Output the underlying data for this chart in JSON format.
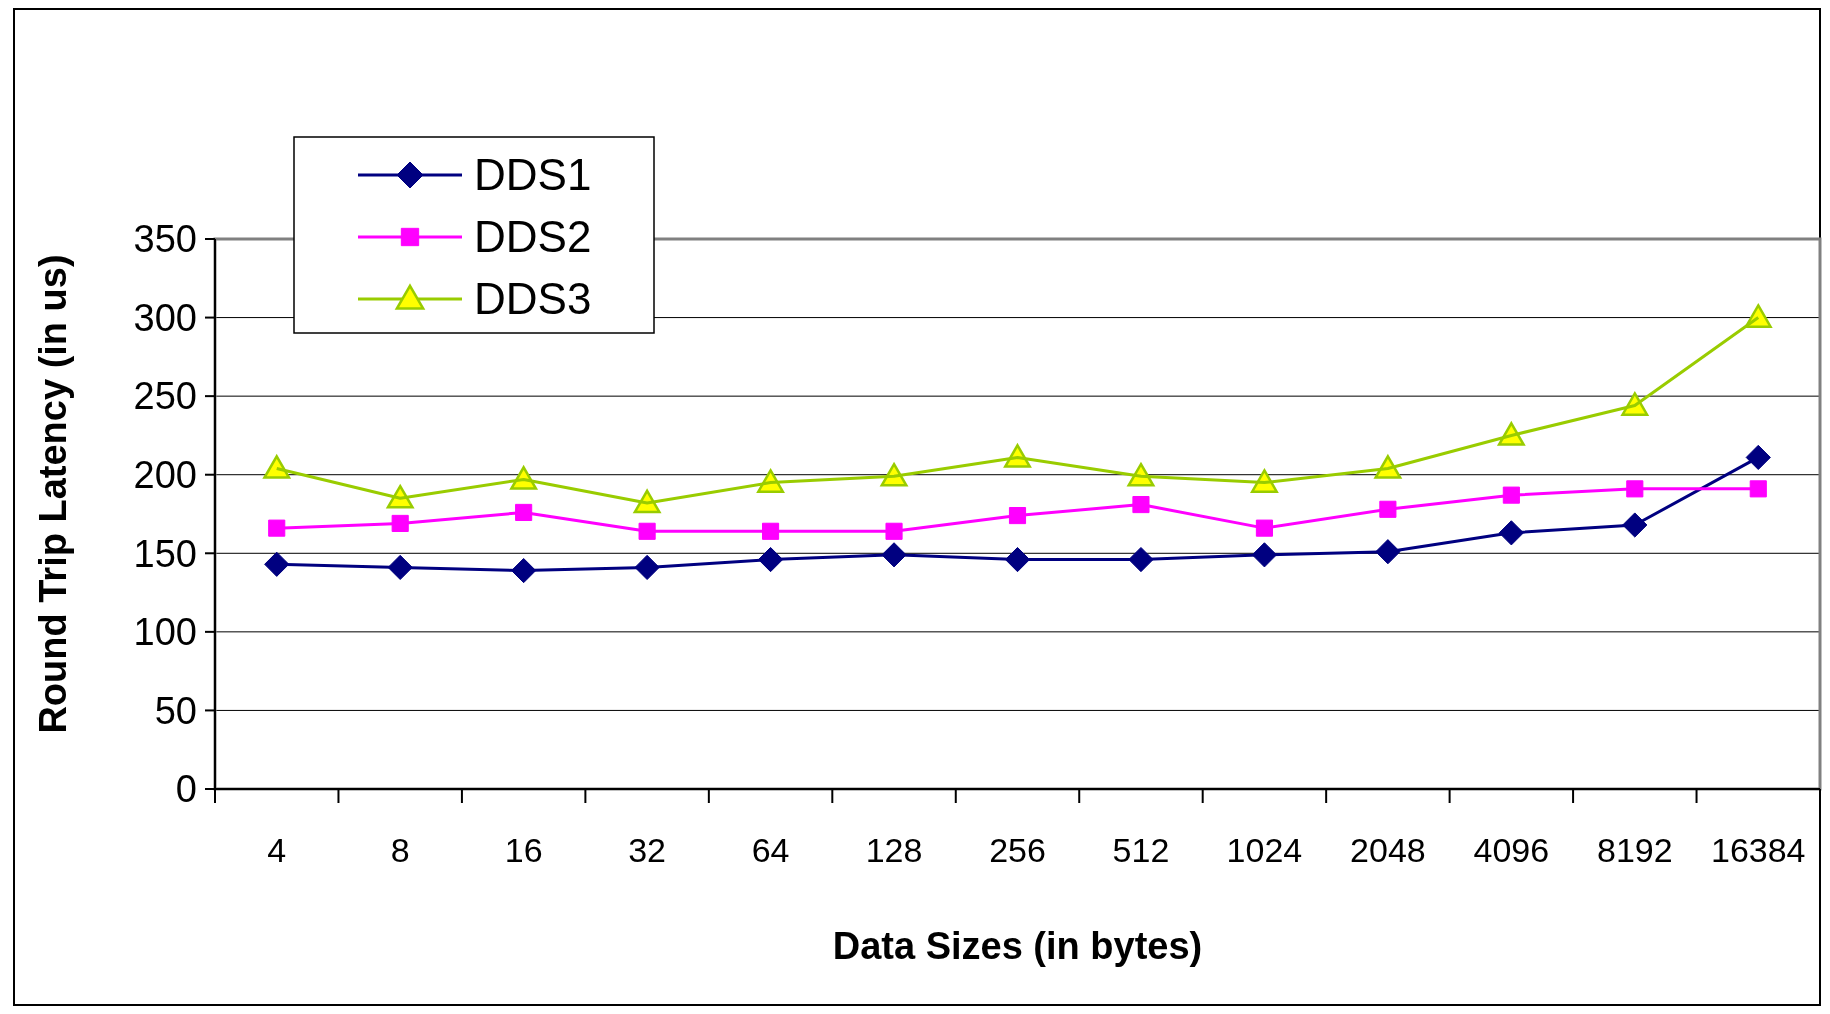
{
  "chart_data": {
    "type": "line",
    "xlabel": "Data Sizes (in bytes)",
    "ylabel": "Round Trip Latency (in us)",
    "categories": [
      "4",
      "8",
      "16",
      "32",
      "64",
      "128",
      "256",
      "512",
      "1024",
      "2048",
      "4096",
      "8192",
      "16384"
    ],
    "series": [
      {
        "name": "DDS1",
        "color": "#000080",
        "marker": "diamond",
        "values": [
          143,
          141,
          139,
          141,
          146,
          149,
          146,
          146,
          149,
          151,
          163,
          168,
          211
        ]
      },
      {
        "name": "DDS2",
        "color": "#ff00ff",
        "marker": "square",
        "values": [
          166,
          169,
          176,
          164,
          164,
          164,
          174,
          181,
          166,
          178,
          187,
          191,
          191
        ]
      },
      {
        "name": "DDS3",
        "color": "#99cc00",
        "marker": "triangle",
        "values": [
          204,
          185,
          197,
          182,
          195,
          199,
          211,
          199,
          195,
          204,
          225,
          244,
          300
        ]
      }
    ],
    "ylim": [
      0,
      350
    ],
    "yticks": [
      0,
      50,
      100,
      150,
      200,
      250,
      300,
      350
    ],
    "grid": "y",
    "legend": "top left"
  }
}
